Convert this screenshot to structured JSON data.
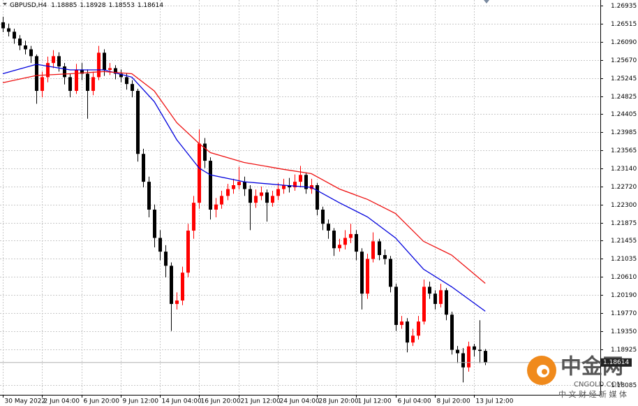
{
  "chart_data": {
    "type": "candlestick",
    "title": "GBPUSD,H4",
    "xlim": [
      -0.5,
      106.5
    ],
    "xticks": [
      {
        "value": 0,
        "label": "30 May 2022"
      },
      {
        "value": 7,
        "label": "2 Jun 04:00"
      },
      {
        "value": 14,
        "label": "6 Jun 20:00"
      },
      {
        "value": 21,
        "label": "9 Jun 12:00"
      },
      {
        "value": 28,
        "label": "14 Jun 04:00"
      },
      {
        "value": 35,
        "label": "16 Jun 20:00"
      },
      {
        "value": 42,
        "label": "21 Jun 12:00"
      },
      {
        "value": 49,
        "label": "24 Jun 04:00"
      },
      {
        "value": 56,
        "label": "28 Jun 20:00"
      },
      {
        "value": 63,
        "label": "1 Jul 12:00"
      },
      {
        "value": 70,
        "label": "6 Jul 04:00"
      },
      {
        "value": 77,
        "label": "8 Jul 20:00"
      },
      {
        "value": 84,
        "label": "13 Jul 12:00"
      }
    ],
    "ylim": [
      1.1786,
      1.2707
    ],
    "yticks": [
      1.26935,
      1.26515,
      {
        "value": 1.2609,
        "label": "1.26090"
      },
      {
        "value": 1.2567,
        "label": "1.25670"
      },
      1.25245,
      1.24825,
      1.24405,
      1.23985,
      1.23565,
      {
        "value": 1.2314,
        "label": "1.23140"
      },
      {
        "value": 1.2272,
        "label": "1.22720"
      },
      {
        "value": 1.223,
        "label": "1.22300"
      },
      1.21875,
      1.21455,
      1.21035,
      {
        "value": 1.2061,
        "label": "1.20610"
      },
      {
        "value": 1.2019,
        "label": "1.20190"
      },
      {
        "value": 1.1977,
        "label": "1.19770"
      },
      {
        "value": 1.1935,
        "label": "1.19350"
      },
      1.18925,
      1.18085
    ],
    "grid": true,
    "up_color": "#ff0000",
    "down_color": "#000000",
    "open": [
      1.2655,
      1.2641,
      1.2633,
      1.2617,
      1.2601,
      1.2592,
      1.2576,
      1.2495,
      1.2527,
      1.256,
      1.2576,
      1.2552,
      1.2527,
      1.2495,
      1.2544,
      1.2535,
      1.2495,
      1.2527,
      1.2584,
      1.2544,
      1.2548,
      1.2535,
      1.2527,
      1.2511,
      1.2495,
      1.2348,
      1.2283,
      1.2218,
      1.2152,
      1.212,
      1.2087,
      1.1998,
      1.2006,
      1.2071,
      1.2169,
      1.2234,
      1.2372,
      1.2332,
      1.2218,
      1.223,
      1.225,
      1.2266,
      1.2275,
      1.2283,
      1.2266,
      1.2234,
      1.225,
      1.2258,
      1.2234,
      1.225,
      1.2266,
      1.2275,
      1.227,
      1.2283,
      1.2299,
      1.2266,
      1.2275,
      1.2218,
      1.2185,
      1.2169,
      1.2128,
      1.2136,
      1.2152,
      1.2161,
      1.212,
      1.2022,
      1.2103,
      1.2144,
      1.2112,
      1.2103,
      1.2038,
      1.1949,
      1.1957,
      1.1908,
      1.1924,
      1.1957,
      1.2038,
      1.2022,
      1.1998,
      1.203,
      1.1973,
      1.1891,
      1.1883,
      1.185,
      1.1899,
      1.1891,
      1.18885
    ],
    "high": [
      1.2668,
      1.2652,
      1.264,
      1.2625,
      1.2612,
      1.26,
      1.258,
      1.254,
      1.2575,
      1.259,
      1.2585,
      1.256,
      1.2535,
      1.2558,
      1.256,
      1.2545,
      1.254,
      1.26,
      1.2592,
      1.256,
      1.2555,
      1.2545,
      1.2535,
      1.252,
      1.25,
      1.236,
      1.2295,
      1.223,
      1.217,
      1.2135,
      1.2095,
      1.2025,
      1.2085,
      1.2185,
      1.225,
      1.2405,
      1.2385,
      1.234,
      1.2245,
      1.2262,
      1.2278,
      1.229,
      1.2318,
      1.2295,
      1.2275,
      1.2265,
      1.2272,
      1.2265,
      1.2262,
      1.228,
      1.229,
      1.2292,
      1.23,
      1.232,
      1.2305,
      1.229,
      1.228,
      1.2225,
      1.2195,
      1.2175,
      1.215,
      1.217,
      1.2185,
      1.217,
      1.2128,
      1.2115,
      1.2165,
      1.215,
      1.2125,
      1.211,
      1.2045,
      1.197,
      1.1965,
      1.194,
      1.197,
      1.2055,
      1.205,
      1.203,
      1.2045,
      1.2035,
      1.198,
      1.19,
      1.1895,
      1.191,
      1.1905,
      1.196,
      1.18928
    ],
    "low": [
      1.2632,
      1.2622,
      1.2605,
      1.259,
      1.258,
      1.256,
      1.2465,
      1.248,
      1.2515,
      1.2548,
      1.254,
      1.251,
      1.248,
      1.2488,
      1.252,
      1.243,
      1.2485,
      1.252,
      1.253,
      1.2532,
      1.2522,
      1.2515,
      1.2498,
      1.248,
      1.233,
      1.227,
      1.22,
      1.213,
      1.21,
      1.206,
      1.1935,
      1.1985,
      1.1995,
      1.206,
      1.215,
      1.222,
      1.2315,
      1.2195,
      1.22,
      1.222,
      1.224,
      1.2255,
      1.2265,
      1.225,
      1.217,
      1.2222,
      1.224,
      1.219,
      1.2225,
      1.224,
      1.2255,
      1.2258,
      1.2262,
      1.227,
      1.2255,
      1.2255,
      1.2205,
      1.217,
      1.215,
      1.211,
      1.212,
      1.2125,
      1.214,
      1.21,
      1.1985,
      1.201,
      1.2095,
      1.21,
      1.209,
      1.2025,
      1.1935,
      1.194,
      1.1885,
      1.19,
      1.1915,
      1.195,
      1.201,
      1.1985,
      1.199,
      1.196,
      1.188,
      1.186,
      1.1815,
      1.184,
      1.1875,
      1.186,
      1.18553
    ],
    "close": [
      1.2641,
      1.2633,
      1.2617,
      1.2601,
      1.2592,
      1.2576,
      1.2495,
      1.2527,
      1.256,
      1.2576,
      1.2552,
      1.2527,
      1.2495,
      1.2544,
      1.2535,
      1.2495,
      1.2527,
      1.2584,
      1.2544,
      1.2548,
      1.2535,
      1.2527,
      1.2511,
      1.2495,
      1.2348,
      1.2283,
      1.2218,
      1.2152,
      1.212,
      1.2087,
      1.1998,
      1.2006,
      1.2071,
      1.2169,
      1.2234,
      1.2372,
      1.2332,
      1.2218,
      1.223,
      1.225,
      1.2266,
      1.2275,
      1.2283,
      1.2266,
      1.2234,
      1.225,
      1.2258,
      1.2234,
      1.225,
      1.2266,
      1.2275,
      1.227,
      1.2283,
      1.2299,
      1.2266,
      1.2275,
      1.2218,
      1.2185,
      1.2169,
      1.2128,
      1.2136,
      1.2152,
      1.2161,
      1.212,
      1.2022,
      1.2103,
      1.2144,
      1.2112,
      1.2103,
      1.2038,
      1.1949,
      1.1957,
      1.1908,
      1.1924,
      1.1957,
      1.2038,
      1.2022,
      1.1998,
      1.203,
      1.1973,
      1.1891,
      1.1883,
      1.185,
      1.1899,
      1.1891,
      1.18885,
      1.18614
    ],
    "lines": [
      {
        "color": "#0000dd",
        "x": [
          0,
          6,
          12,
          18,
          23,
          27,
          31,
          35,
          37,
          43,
          50,
          55,
          60,
          65,
          70,
          75,
          80,
          86
        ],
        "values": [
          1.2535,
          1.2557,
          1.2544,
          1.2544,
          1.2527,
          1.247,
          1.2381,
          1.2315,
          1.2299,
          1.2283,
          1.2275,
          1.227,
          1.2234,
          1.2201,
          1.2152,
          1.2079,
          1.2038,
          1.1981
        ]
      },
      {
        "color": "#ee1111",
        "x": [
          0,
          6,
          12,
          18,
          23,
          27,
          31,
          35,
          37,
          43,
          50,
          55,
          60,
          65,
          70,
          75,
          80,
          86
        ],
        "values": [
          1.2514,
          1.2531,
          1.2535,
          1.254,
          1.2535,
          1.2495,
          1.2421,
          1.2372,
          1.2351,
          1.2328,
          1.2312,
          1.2302,
          1.2266,
          1.2242,
          1.2209,
          1.2144,
          1.2112,
          1.2046
        ]
      }
    ],
    "watermark": {
      "brand": "中金网",
      "site": "CNGOLD.COM",
      "slogan": "中 文 财 经 新 媒 体"
    }
  }
}
